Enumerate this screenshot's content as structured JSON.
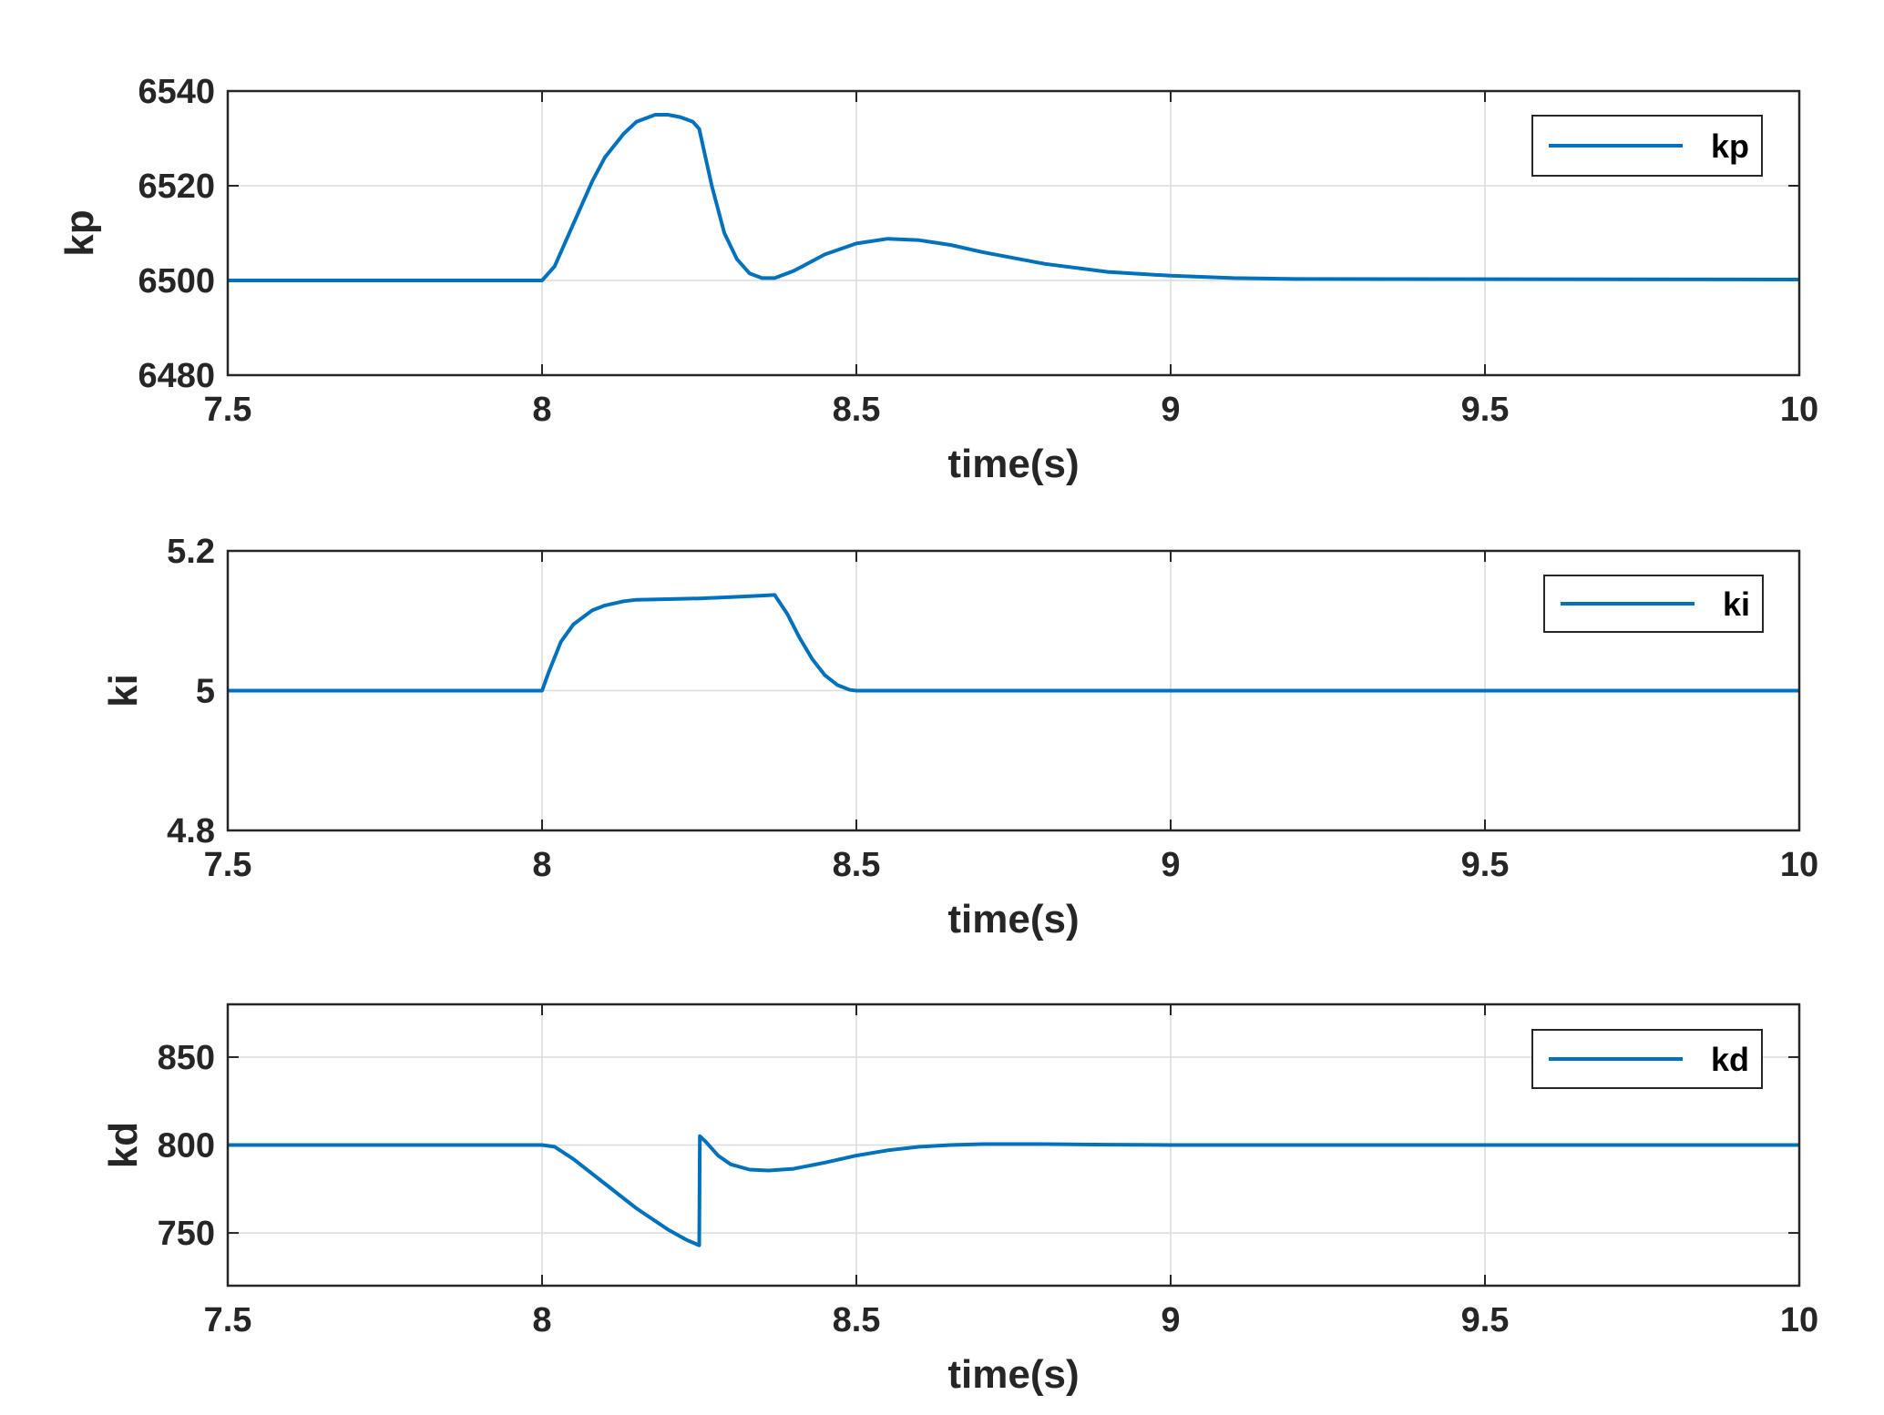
{
  "chart_data": [
    {
      "type": "line",
      "xlabel": "time(s)",
      "ylabel": "kp",
      "xlim": [
        7.5,
        10
      ],
      "ylim": [
        6480,
        6540
      ],
      "xticks": [
        "7.5",
        "8",
        "8.5",
        "9",
        "9.5",
        "10"
      ],
      "yticks": [
        "6480",
        "6500",
        "6520",
        "6540"
      ],
      "grid": true,
      "legend_position": "top-right",
      "series": [
        {
          "name": "kp",
          "color": "#0072BD",
          "x": [
            7.5,
            8.0,
            8.02,
            8.05,
            8.08,
            8.1,
            8.13,
            8.15,
            8.18,
            8.2,
            8.22,
            8.24,
            8.25,
            8.27,
            8.29,
            8.31,
            8.33,
            8.35,
            8.37,
            8.4,
            8.45,
            8.5,
            8.55,
            8.6,
            8.65,
            8.7,
            8.8,
            8.9,
            9.0,
            9.1,
            9.2,
            10.0
          ],
          "y": [
            6500,
            6500,
            6503,
            6512,
            6521,
            6526,
            6531,
            6533.5,
            6535,
            6535,
            6534.5,
            6533.5,
            6532,
            6520,
            6510,
            6504.5,
            6501.5,
            6500.5,
            6500.5,
            6502,
            6505.5,
            6507.8,
            6508.8,
            6508.5,
            6507.5,
            6506,
            6503.5,
            6501.8,
            6501,
            6500.5,
            6500.3,
            6500.2
          ]
        }
      ]
    },
    {
      "type": "line",
      "xlabel": "time(s)",
      "ylabel": "ki",
      "xlim": [
        7.5,
        10
      ],
      "ylim": [
        4.8,
        5.2
      ],
      "xticks": [
        "7.5",
        "8",
        "8.5",
        "9",
        "9.5",
        "10"
      ],
      "yticks": [
        "4.8",
        "5",
        "5.2"
      ],
      "grid": true,
      "legend_position": "top-right",
      "series": [
        {
          "name": "ki",
          "color": "#0072BD",
          "x": [
            7.5,
            8.0,
            8.01,
            8.03,
            8.05,
            8.08,
            8.1,
            8.13,
            8.15,
            8.2,
            8.25,
            8.3,
            8.35,
            8.37,
            8.39,
            8.41,
            8.43,
            8.45,
            8.47,
            8.49,
            8.5,
            10.0
          ],
          "y": [
            5.0,
            5.0,
            5.025,
            5.07,
            5.095,
            5.115,
            5.122,
            5.128,
            5.13,
            5.131,
            5.132,
            5.134,
            5.136,
            5.137,
            5.11,
            5.075,
            5.045,
            5.022,
            5.008,
            5.001,
            5.0,
            5.0
          ]
        }
      ]
    },
    {
      "type": "line",
      "xlabel": "time(s)",
      "ylabel": "kd",
      "xlim": [
        7.5,
        10
      ],
      "ylim": [
        720,
        880
      ],
      "xticks": [
        "7.5",
        "8",
        "8.5",
        "9",
        "9.5",
        "10"
      ],
      "yticks": [
        "750",
        "800",
        "850"
      ],
      "grid": true,
      "legend_position": "top-right",
      "series": [
        {
          "name": "kd",
          "color": "#0072BD",
          "x": [
            7.5,
            8.0,
            8.02,
            8.05,
            8.1,
            8.15,
            8.2,
            8.23,
            8.25,
            8.251,
            8.26,
            8.28,
            8.3,
            8.33,
            8.36,
            8.4,
            8.45,
            8.5,
            8.55,
            8.6,
            8.65,
            8.7,
            8.8,
            8.9,
            9.0,
            10.0
          ],
          "y": [
            800,
            800,
            799,
            792,
            778,
            764,
            752,
            746,
            743,
            805,
            802,
            794,
            789,
            786,
            785.5,
            786.5,
            790,
            794,
            797,
            799,
            800,
            800.5,
            800.5,
            800.2,
            800,
            800
          ]
        }
      ]
    }
  ]
}
